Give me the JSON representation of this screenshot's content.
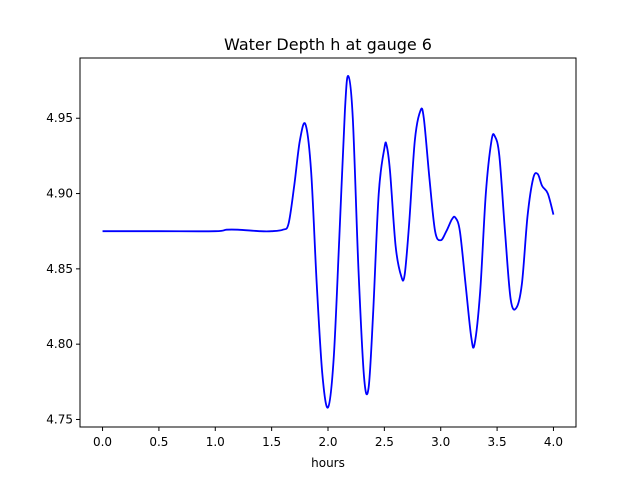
{
  "chart_data": {
    "type": "line",
    "title": "Water Depth h at gauge 6",
    "xlabel": "hours",
    "ylabel": "",
    "xlim": [
      -0.2,
      4.2
    ],
    "ylim": [
      4.745,
      4.99
    ],
    "xticks": [
      0.0,
      0.5,
      1.0,
      1.5,
      2.0,
      2.5,
      3.0,
      3.5,
      4.0
    ],
    "xtick_labels": [
      "0.0",
      "0.5",
      "1.0",
      "1.5",
      "2.0",
      "2.5",
      "3.0",
      "3.5",
      "4.0"
    ],
    "yticks": [
      4.75,
      4.8,
      4.85,
      4.9,
      4.95
    ],
    "ytick_labels": [
      "4.75",
      "4.80",
      "4.85",
      "4.90",
      "4.95"
    ],
    "grid": false,
    "series": [
      {
        "color": "#0000ff",
        "x": [
          0.0,
          0.5,
          1.0,
          1.1,
          1.2,
          1.4,
          1.5,
          1.6,
          1.65,
          1.7,
          1.75,
          1.8,
          1.85,
          1.9,
          1.95,
          2.0,
          2.05,
          2.1,
          2.15,
          2.18,
          2.22,
          2.27,
          2.32,
          2.36,
          2.4,
          2.45,
          2.5,
          2.52,
          2.55,
          2.6,
          2.65,
          2.68,
          2.72,
          2.77,
          2.82,
          2.85,
          2.9,
          2.95,
          3.0,
          3.05,
          3.1,
          3.13,
          3.17,
          3.22,
          3.27,
          3.3,
          3.35,
          3.4,
          3.45,
          3.48,
          3.52,
          3.57,
          3.62,
          3.67,
          3.72,
          3.77,
          3.82,
          3.86,
          3.9,
          3.95,
          4.0
        ],
        "y": [
          4.875,
          4.875,
          4.875,
          4.876,
          4.876,
          4.875,
          4.875,
          4.876,
          4.88,
          4.905,
          4.935,
          4.946,
          4.915,
          4.84,
          4.78,
          4.758,
          4.79,
          4.87,
          4.955,
          4.978,
          4.95,
          4.85,
          4.778,
          4.771,
          4.82,
          4.9,
          4.93,
          4.932,
          4.915,
          4.865,
          4.845,
          4.846,
          4.88,
          4.935,
          4.955,
          4.95,
          4.91,
          4.875,
          4.869,
          4.875,
          4.883,
          4.884,
          4.875,
          4.84,
          4.805,
          4.8,
          4.835,
          4.9,
          4.935,
          4.938,
          4.925,
          4.875,
          4.83,
          4.824,
          4.84,
          4.885,
          4.91,
          4.913,
          4.905,
          4.9,
          4.886
        ]
      }
    ]
  }
}
